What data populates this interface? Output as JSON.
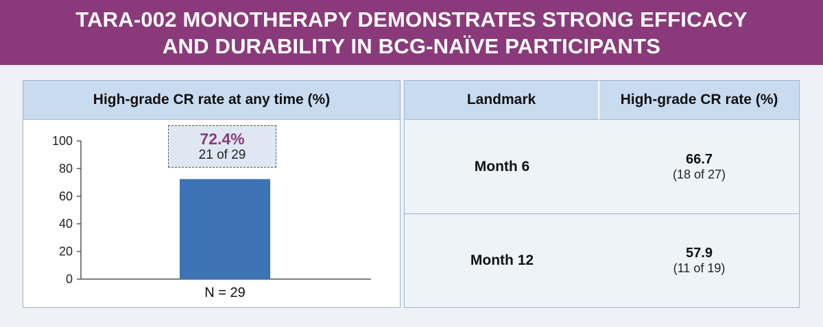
{
  "banner": {
    "line1": "TARA-002 MONOTHERAPY DEMONSTRATES STRONG EFFICACY",
    "line2": "AND DURABILITY IN BCG-NAÏVE PARTICIPANTS",
    "color": "#8a3a7a"
  },
  "left_panel": {
    "header": "High-grade CR rate at any time (%)",
    "callout_pct": "72.4%",
    "callout_count": "21 of 29",
    "n_label": "N = 29"
  },
  "right_panel": {
    "headers": [
      "Landmark",
      "High-grade CR rate (%)"
    ],
    "rows": [
      {
        "label": "Month 6",
        "value": "66.7",
        "sub": "(18 of 27)"
      },
      {
        "label": "Month 12",
        "value": "57.9",
        "sub": "(11 of 19)"
      }
    ]
  },
  "colors": {
    "bar": "#3d72b4",
    "accent": "#8a3a7a",
    "header_bg": "#c9dbee"
  },
  "chart_data": {
    "type": "bar",
    "title": "High-grade CR rate at any time (%)",
    "categories": [
      "N = 29"
    ],
    "values": [
      72.4
    ],
    "data_labels": [
      "72.4%"
    ],
    "annotations": [
      "21 of 29"
    ],
    "ylim": [
      0,
      100
    ],
    "yticks": [
      0,
      20,
      40,
      60,
      80,
      100
    ],
    "grid": false
  }
}
